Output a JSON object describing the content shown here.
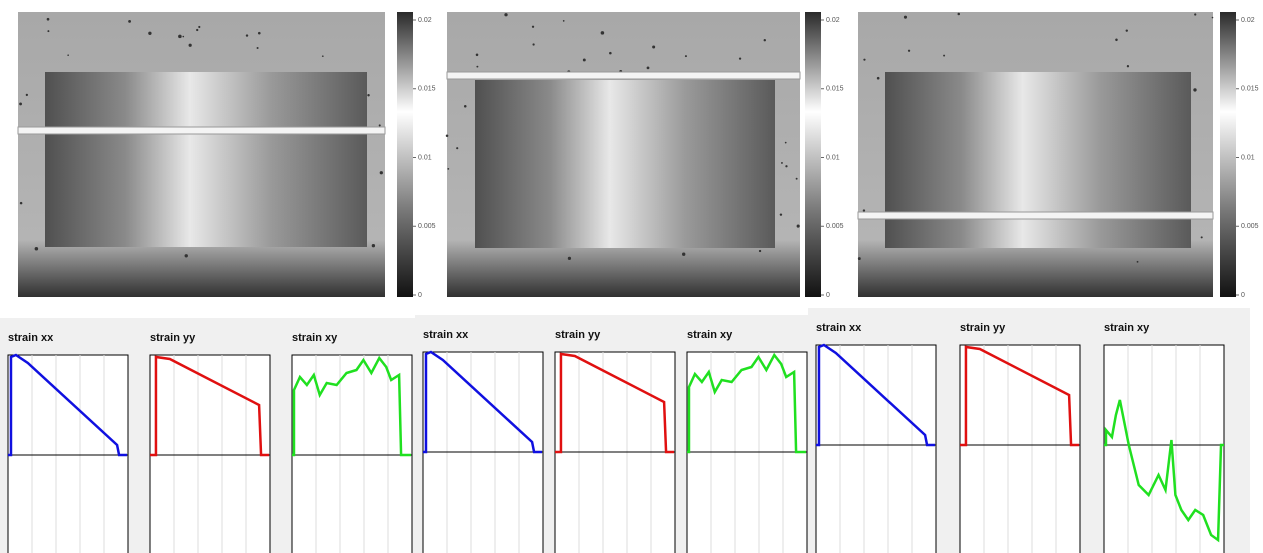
{
  "panels": [
    {
      "colorbar_ticks": [
        0.02,
        0.015,
        0.01,
        0.005,
        0
      ],
      "plots": [
        {
          "title": "strain xx"
        },
        {
          "title": "strain yy"
        },
        {
          "title": "strain xy"
        }
      ]
    },
    {
      "colorbar_ticks": [
        0.02,
        0.015,
        0.01,
        0.005,
        0
      ],
      "plots": [
        {
          "title": "strain xx"
        },
        {
          "title": "strain yy"
        },
        {
          "title": "strain xy"
        }
      ]
    },
    {
      "colorbar_ticks": [
        0.02,
        0.015,
        0.01,
        0.005,
        0
      ],
      "plots": [
        {
          "title": "strain xx"
        },
        {
          "title": "strain yy"
        },
        {
          "title": "strain xy"
        }
      ]
    }
  ]
}
